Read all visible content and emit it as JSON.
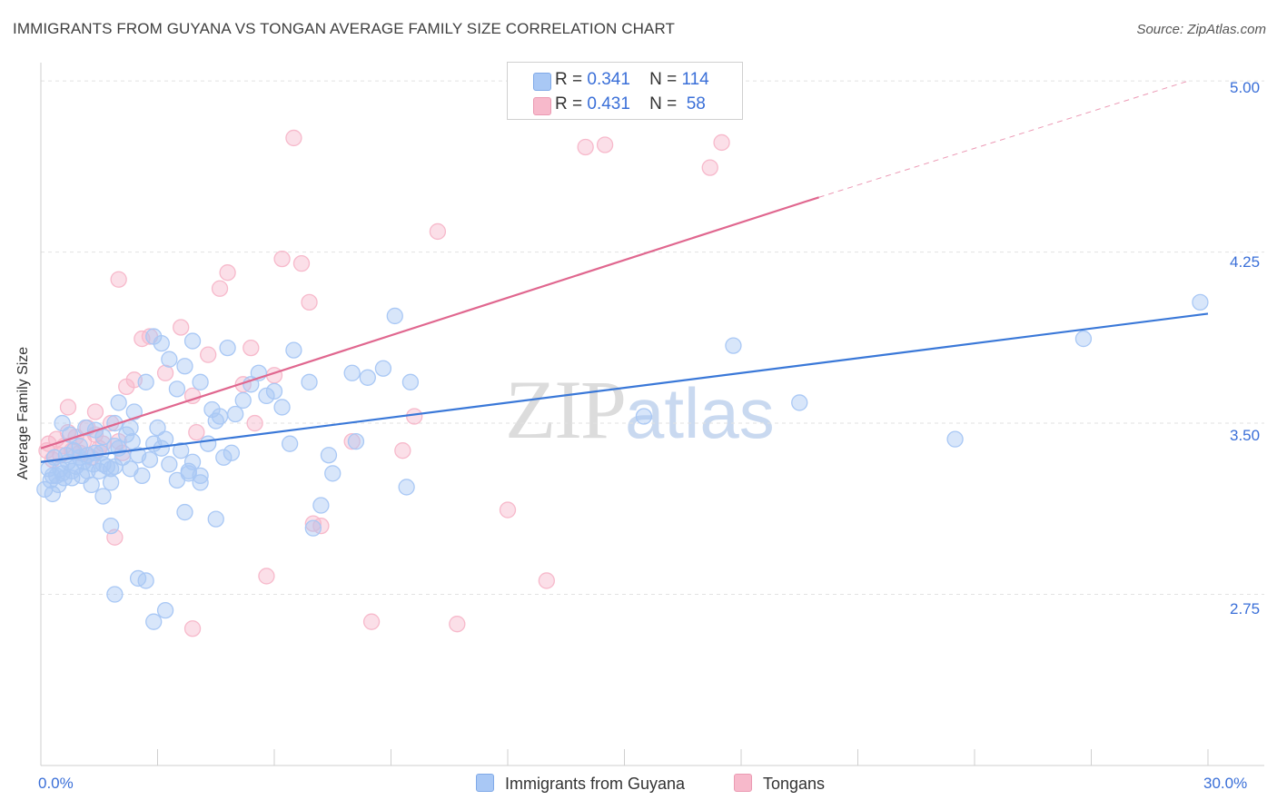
{
  "header": {
    "title": "IMMIGRANTS FROM GUYANA VS TONGAN AVERAGE FAMILY SIZE CORRELATION CHART",
    "source": "Source: ZipAtlas.com"
  },
  "watermark": {
    "zip": "ZIP",
    "atlas": "atlas"
  },
  "legend": {
    "rows": [
      {
        "r_label": "R =",
        "r_value": "0.341",
        "n_label": "N =",
        "n_value": "114",
        "color": "#a9c8f5"
      },
      {
        "r_label": "R =",
        "r_value": "0.431",
        "n_label": "N =",
        "n_value": "58",
        "color": "#f7b9cb"
      }
    ]
  },
  "bottom_legend": [
    {
      "label": "Immigrants from Guyana",
      "color": "#a9c8f5"
    },
    {
      "label": "Tongans",
      "color": "#f7b9cb"
    }
  ],
  "axis": {
    "ylabel": "Average Family Size",
    "x_tick_labels": [
      "0.0%",
      "30.0%"
    ],
    "y_tick_labels": [
      "5.00",
      "4.25",
      "3.50",
      "2.75"
    ]
  },
  "chart_data": {
    "type": "scatter",
    "xlim": [
      0,
      30
    ],
    "ylim": [
      2.0,
      5.08
    ],
    "y_ticks": [
      5.0,
      4.25,
      3.5,
      2.75
    ],
    "x_ticks_minor": [
      0,
      3,
      6,
      9,
      12,
      15,
      18,
      21,
      24,
      27,
      30
    ],
    "grid": "horizontal-dashed",
    "series": [
      {
        "name": "Immigrants from Guyana",
        "color": "#3a78d8",
        "fill": "#a9c8f5",
        "trend": {
          "x0": 0,
          "y0": 3.33,
          "x1": 30,
          "y1": 3.98
        },
        "points": [
          [
            0.1,
            3.21
          ],
          [
            0.2,
            3.3
          ],
          [
            0.25,
            3.25
          ],
          [
            0.3,
            3.19
          ],
          [
            0.35,
            3.35
          ],
          [
            0.4,
            3.27
          ],
          [
            0.45,
            3.23
          ],
          [
            0.5,
            3.3
          ],
          [
            0.55,
            3.28
          ],
          [
            0.6,
            3.26
          ],
          [
            0.65,
            3.36
          ],
          [
            0.7,
            3.33
          ],
          [
            0.75,
            3.45
          ],
          [
            0.8,
            3.29
          ],
          [
            0.85,
            3.38
          ],
          [
            0.9,
            3.31
          ],
          [
            1.0,
            3.4
          ],
          [
            1.05,
            3.27
          ],
          [
            1.1,
            3.33
          ],
          [
            1.15,
            3.48
          ],
          [
            1.2,
            3.36
          ],
          [
            1.3,
            3.23
          ],
          [
            1.35,
            3.32
          ],
          [
            1.4,
            3.47
          ],
          [
            1.5,
            3.29
          ],
          [
            1.55,
            3.37
          ],
          [
            1.6,
            3.44
          ],
          [
            1.7,
            3.31
          ],
          [
            1.8,
            3.24
          ],
          [
            1.9,
            3.4
          ],
          [
            0.3,
            3.27
          ],
          [
            0.55,
            3.5
          ],
          [
            0.8,
            3.26
          ],
          [
            1.0,
            3.35
          ],
          [
            1.2,
            3.29
          ],
          [
            1.4,
            3.37
          ],
          [
            1.6,
            3.32
          ],
          [
            1.8,
            3.3
          ],
          [
            2.0,
            3.39
          ],
          [
            2.1,
            3.35
          ],
          [
            1.9,
            3.31
          ],
          [
            2.2,
            3.45
          ],
          [
            2.3,
            3.3
          ],
          [
            2.35,
            3.42
          ],
          [
            2.4,
            3.55
          ],
          [
            2.6,
            3.27
          ],
          [
            2.8,
            3.34
          ],
          [
            2.9,
            3.41
          ],
          [
            3.0,
            3.48
          ],
          [
            3.1,
            3.39
          ],
          [
            3.2,
            3.43
          ],
          [
            3.3,
            3.32
          ],
          [
            3.5,
            3.25
          ],
          [
            3.6,
            3.38
          ],
          [
            3.8,
            3.29
          ],
          [
            3.9,
            3.33
          ],
          [
            4.1,
            3.24
          ],
          [
            4.3,
            3.41
          ],
          [
            4.5,
            3.51
          ],
          [
            4.7,
            3.35
          ],
          [
            1.6,
            3.18
          ],
          [
            1.9,
            3.5
          ],
          [
            2.0,
            3.59
          ],
          [
            2.3,
            3.48
          ],
          [
            2.5,
            3.36
          ],
          [
            2.7,
            3.68
          ],
          [
            2.9,
            3.88
          ],
          [
            3.1,
            3.85
          ],
          [
            3.3,
            3.78
          ],
          [
            3.5,
            3.65
          ],
          [
            3.7,
            3.75
          ],
          [
            3.9,
            3.86
          ],
          [
            4.1,
            3.68
          ],
          [
            4.4,
            3.56
          ],
          [
            4.6,
            3.53
          ],
          [
            4.8,
            3.83
          ],
          [
            5.0,
            3.54
          ],
          [
            5.2,
            3.6
          ],
          [
            5.4,
            3.67
          ],
          [
            5.6,
            3.72
          ],
          [
            5.8,
            3.62
          ],
          [
            6.0,
            3.64
          ],
          [
            6.2,
            3.57
          ],
          [
            6.5,
            3.82
          ],
          [
            6.4,
            3.41
          ],
          [
            6.9,
            3.68
          ],
          [
            7.2,
            3.14
          ],
          [
            7.5,
            3.28
          ],
          [
            8.0,
            3.72
          ],
          [
            8.4,
            3.7
          ],
          [
            8.8,
            3.74
          ],
          [
            9.1,
            3.97
          ],
          [
            9.4,
            3.22
          ],
          [
            7.0,
            3.04
          ],
          [
            1.8,
            3.05
          ],
          [
            1.9,
            2.75
          ],
          [
            2.5,
            2.82
          ],
          [
            2.7,
            2.81
          ],
          [
            2.9,
            2.63
          ],
          [
            3.2,
            2.68
          ],
          [
            3.7,
            3.11
          ],
          [
            4.5,
            3.08
          ],
          [
            4.1,
            3.27
          ],
          [
            3.8,
            3.28
          ],
          [
            4.9,
            3.37
          ],
          [
            7.4,
            3.36
          ],
          [
            8.1,
            3.42
          ],
          [
            9.5,
            3.68
          ],
          [
            15.5,
            3.53
          ],
          [
            19.5,
            3.59
          ],
          [
            17.8,
            3.84
          ],
          [
            23.5,
            3.43
          ],
          [
            26.8,
            3.87
          ],
          [
            29.8,
            4.03
          ]
        ]
      },
      {
        "name": "Tongans",
        "color": "#e0678f",
        "fill": "#f7b9cb",
        "trend": {
          "x0": 0,
          "y0": 3.39,
          "x1": 20,
          "y1": 4.49,
          "dash_to_x": 29.5,
          "dash_to_y": 5.0
        },
        "points": [
          [
            0.15,
            3.38
          ],
          [
            0.2,
            3.41
          ],
          [
            0.3,
            3.34
          ],
          [
            0.4,
            3.43
          ],
          [
            0.5,
            3.36
          ],
          [
            0.6,
            3.4
          ],
          [
            0.7,
            3.46
          ],
          [
            0.8,
            3.38
          ],
          [
            0.9,
            3.44
          ],
          [
            1.0,
            3.37
          ],
          [
            1.1,
            3.42
          ],
          [
            1.2,
            3.48
          ],
          [
            1.3,
            3.35
          ],
          [
            1.4,
            3.45
          ],
          [
            1.5,
            3.39
          ],
          [
            1.6,
            3.41
          ],
          [
            1.8,
            3.5
          ],
          [
            2.0,
            3.42
          ],
          [
            2.1,
            3.37
          ],
          [
            0.7,
            3.57
          ],
          [
            1.4,
            3.55
          ],
          [
            2.2,
            3.66
          ],
          [
            2.4,
            3.69
          ],
          [
            2.6,
            3.87
          ],
          [
            2.8,
            3.88
          ],
          [
            3.2,
            3.72
          ],
          [
            3.6,
            3.92
          ],
          [
            3.9,
            3.62
          ],
          [
            4.0,
            3.46
          ],
          [
            4.3,
            3.8
          ],
          [
            4.6,
            4.09
          ],
          [
            4.8,
            4.16
          ],
          [
            5.2,
            3.67
          ],
          [
            5.4,
            3.83
          ],
          [
            5.5,
            3.5
          ],
          [
            6.0,
            3.71
          ],
          [
            6.2,
            4.22
          ],
          [
            6.5,
            4.75
          ],
          [
            6.9,
            4.03
          ],
          [
            7.0,
            3.06
          ],
          [
            8.0,
            3.42
          ],
          [
            9.3,
            3.38
          ],
          [
            9.6,
            3.53
          ],
          [
            10.2,
            4.34
          ],
          [
            3.9,
            2.6
          ],
          [
            1.9,
            3.0
          ],
          [
            2.0,
            4.13
          ],
          [
            5.8,
            2.83
          ],
          [
            6.7,
            4.2
          ],
          [
            7.2,
            3.05
          ],
          [
            8.5,
            2.63
          ],
          [
            10.7,
            2.62
          ],
          [
            12.0,
            3.12
          ],
          [
            13.0,
            2.81
          ],
          [
            14.0,
            4.71
          ],
          [
            14.5,
            4.72
          ],
          [
            17.2,
            4.62
          ],
          [
            17.5,
            4.73
          ]
        ]
      }
    ]
  }
}
